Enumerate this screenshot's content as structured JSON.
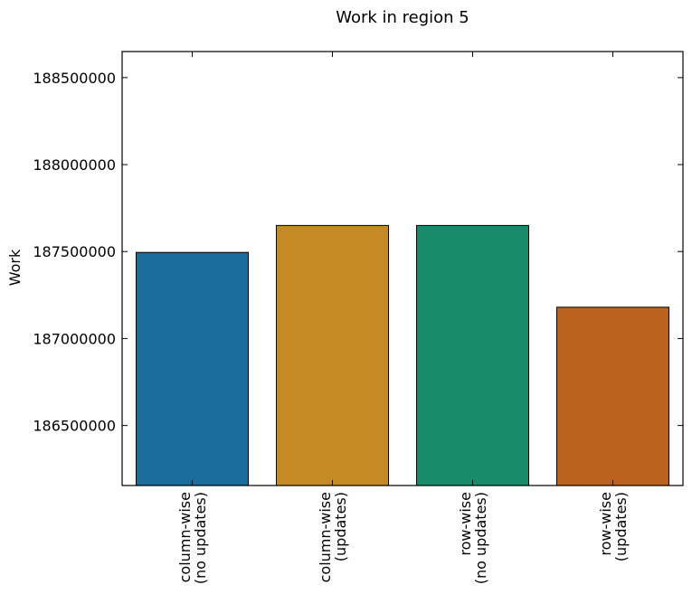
{
  "chart_data": {
    "type": "bar",
    "title": "Work in region 5",
    "xlabel": "",
    "ylabel": "Work",
    "categories": [
      [
        "column-wise",
        "(no updates)"
      ],
      [
        "column-wise",
        "(updates)"
      ],
      [
        "row-wise",
        "(no updates)"
      ],
      [
        "row-wise",
        "(updates)"
      ]
    ],
    "values": [
      187495000,
      187650000,
      187650000,
      187180000
    ],
    "colors": [
      "#1a6c9c",
      "#c58b23",
      "#178c6a",
      "#bb621f"
    ],
    "ylim": [
      186155000,
      188650000
    ],
    "yticks": [
      186500000,
      187000000,
      187500000,
      188000000,
      188500000
    ],
    "ytick_labels": [
      "186500000",
      "187000000",
      "187500000",
      "188000000",
      "188500000"
    ],
    "grid": false,
    "legend": "none"
  }
}
